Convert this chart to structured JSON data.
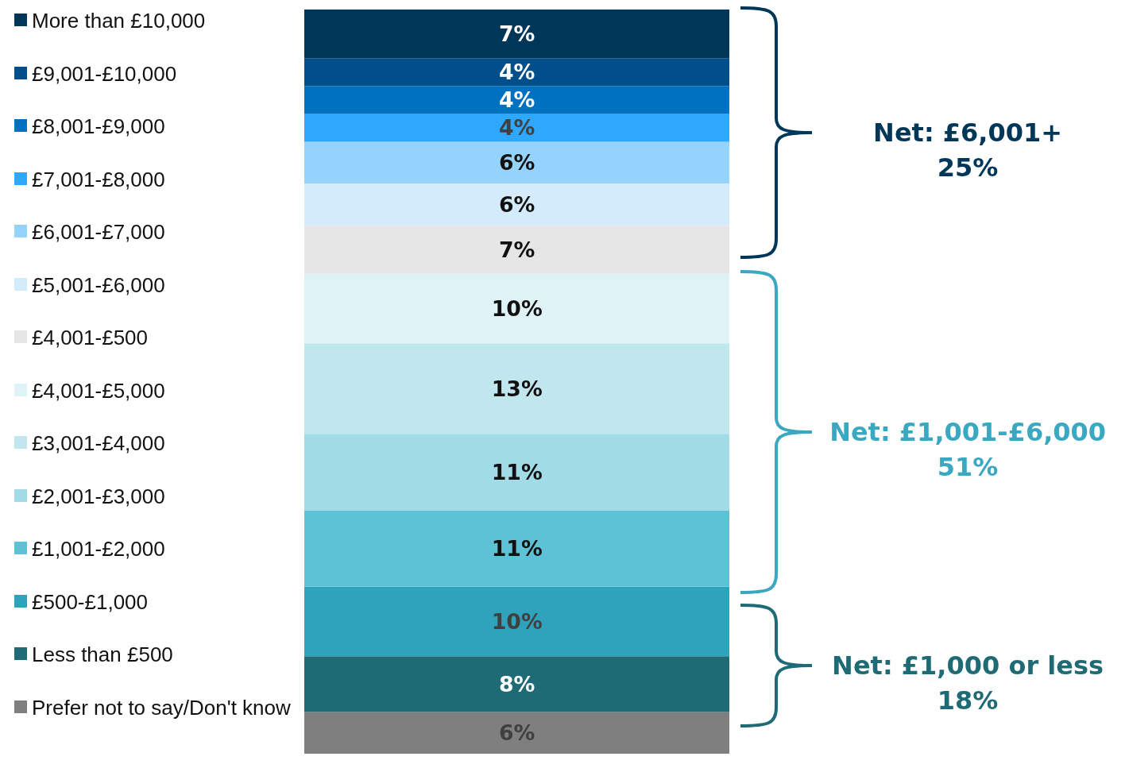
{
  "chart_data": {
    "type": "bar",
    "stacked": true,
    "categories": [
      null
    ],
    "legend": "left",
    "series": [
      {
        "name": "Prefer not to say/Don't know",
        "color": "#7f7f7f",
        "values": [
          6
        ],
        "value_labels": [
          "6%"
        ]
      },
      {
        "name": "Less than £500",
        "color": "#1f6b75",
        "values": [
          8
        ],
        "value_labels": [
          "8%"
        ]
      },
      {
        "name": "£500-£1,000",
        "color": "#2fa3bb",
        "values": [
          10
        ],
        "value_labels": [
          "10%"
        ]
      },
      {
        "name": "£1,001-£2,000",
        "color": "#5ec2d6",
        "values": [
          11
        ],
        "value_labels": [
          "11%"
        ]
      },
      {
        "name": "£2,001-£3,000",
        "color": "#a0dbe6",
        "values": [
          11
        ],
        "value_labels": [
          "11%"
        ]
      },
      {
        "name": "£3,001-£4,000",
        "color": "#c0e6ee",
        "values": [
          13
        ],
        "value_labels": [
          "13%"
        ]
      },
      {
        "name": "£4,001-£5,000",
        "color": "#dff2f6",
        "values": [
          10
        ],
        "value_labels": [
          "10%"
        ]
      },
      {
        "name": "£4,001-£500",
        "color": "#e6e6e6",
        "values": [
          7
        ],
        "value_labels": [
          "7%"
        ]
      },
      {
        "name": "£5,001-£6,000",
        "color": "#d4ebfc",
        "values": [
          6
        ],
        "value_labels": [
          "6%"
        ]
      },
      {
        "name": "£6,001-£7,000",
        "color": "#96d3fc",
        "values": [
          6
        ],
        "value_labels": [
          "6%"
        ]
      },
      {
        "name": "£7,001-£8,000",
        "color": "#2ea8fc",
        "values": [
          4
        ],
        "value_labels": [
          "4%"
        ]
      },
      {
        "name": "£8,001-£9,000",
        "color": "#0070c0",
        "values": [
          4
        ],
        "value_labels": [
          "4%"
        ]
      },
      {
        "name": "£9,001-£10,000",
        "color": "#004f8a",
        "values": [
          4
        ],
        "value_labels": [
          "4%"
        ]
      },
      {
        "name": "More than £10,000",
        "color": "#003658",
        "values": [
          7
        ],
        "value_labels": [
          "7%"
        ]
      }
    ],
    "annotations": [
      "Net: £6,001+\n25%",
      "Net: £1,001-£6,000\n51%",
      "Net: £1,000 or less\n18%"
    ]
  }
}
